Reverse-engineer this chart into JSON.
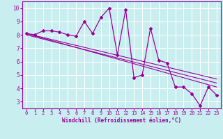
{
  "xlabel": "Windchill (Refroidissement éolien,°C)",
  "background_color": "#c8eef0",
  "grid_color": "#ffffff",
  "line_color": "#990099",
  "xlim": [
    -0.5,
    23.5
  ],
  "ylim": [
    2.5,
    10.5
  ],
  "xticks": [
    0,
    1,
    2,
    3,
    4,
    5,
    6,
    7,
    8,
    9,
    10,
    11,
    12,
    13,
    14,
    15,
    16,
    17,
    18,
    19,
    20,
    21,
    22,
    23
  ],
  "yticks": [
    3,
    4,
    5,
    6,
    7,
    8,
    9,
    10
  ],
  "series1_x": [
    0,
    1,
    2,
    3,
    4,
    5,
    6,
    7,
    8,
    9,
    10,
    11,
    12,
    13,
    14,
    15,
    16,
    17,
    18,
    19,
    20,
    21,
    22,
    23
  ],
  "series1_y": [
    8.1,
    8.0,
    8.3,
    8.3,
    8.2,
    8.0,
    7.9,
    9.0,
    8.1,
    9.3,
    10.0,
    6.5,
    9.9,
    4.8,
    5.0,
    8.5,
    6.1,
    5.9,
    4.1,
    4.1,
    3.6,
    2.7,
    4.1,
    3.5
  ],
  "trend1_x": [
    0,
    23
  ],
  "trend1_y": [
    8.1,
    4.1
  ],
  "trend2_x": [
    0,
    23
  ],
  "trend2_y": [
    8.1,
    4.7
  ],
  "trend3_x": [
    0,
    23
  ],
  "trend3_y": [
    8.0,
    4.4
  ]
}
